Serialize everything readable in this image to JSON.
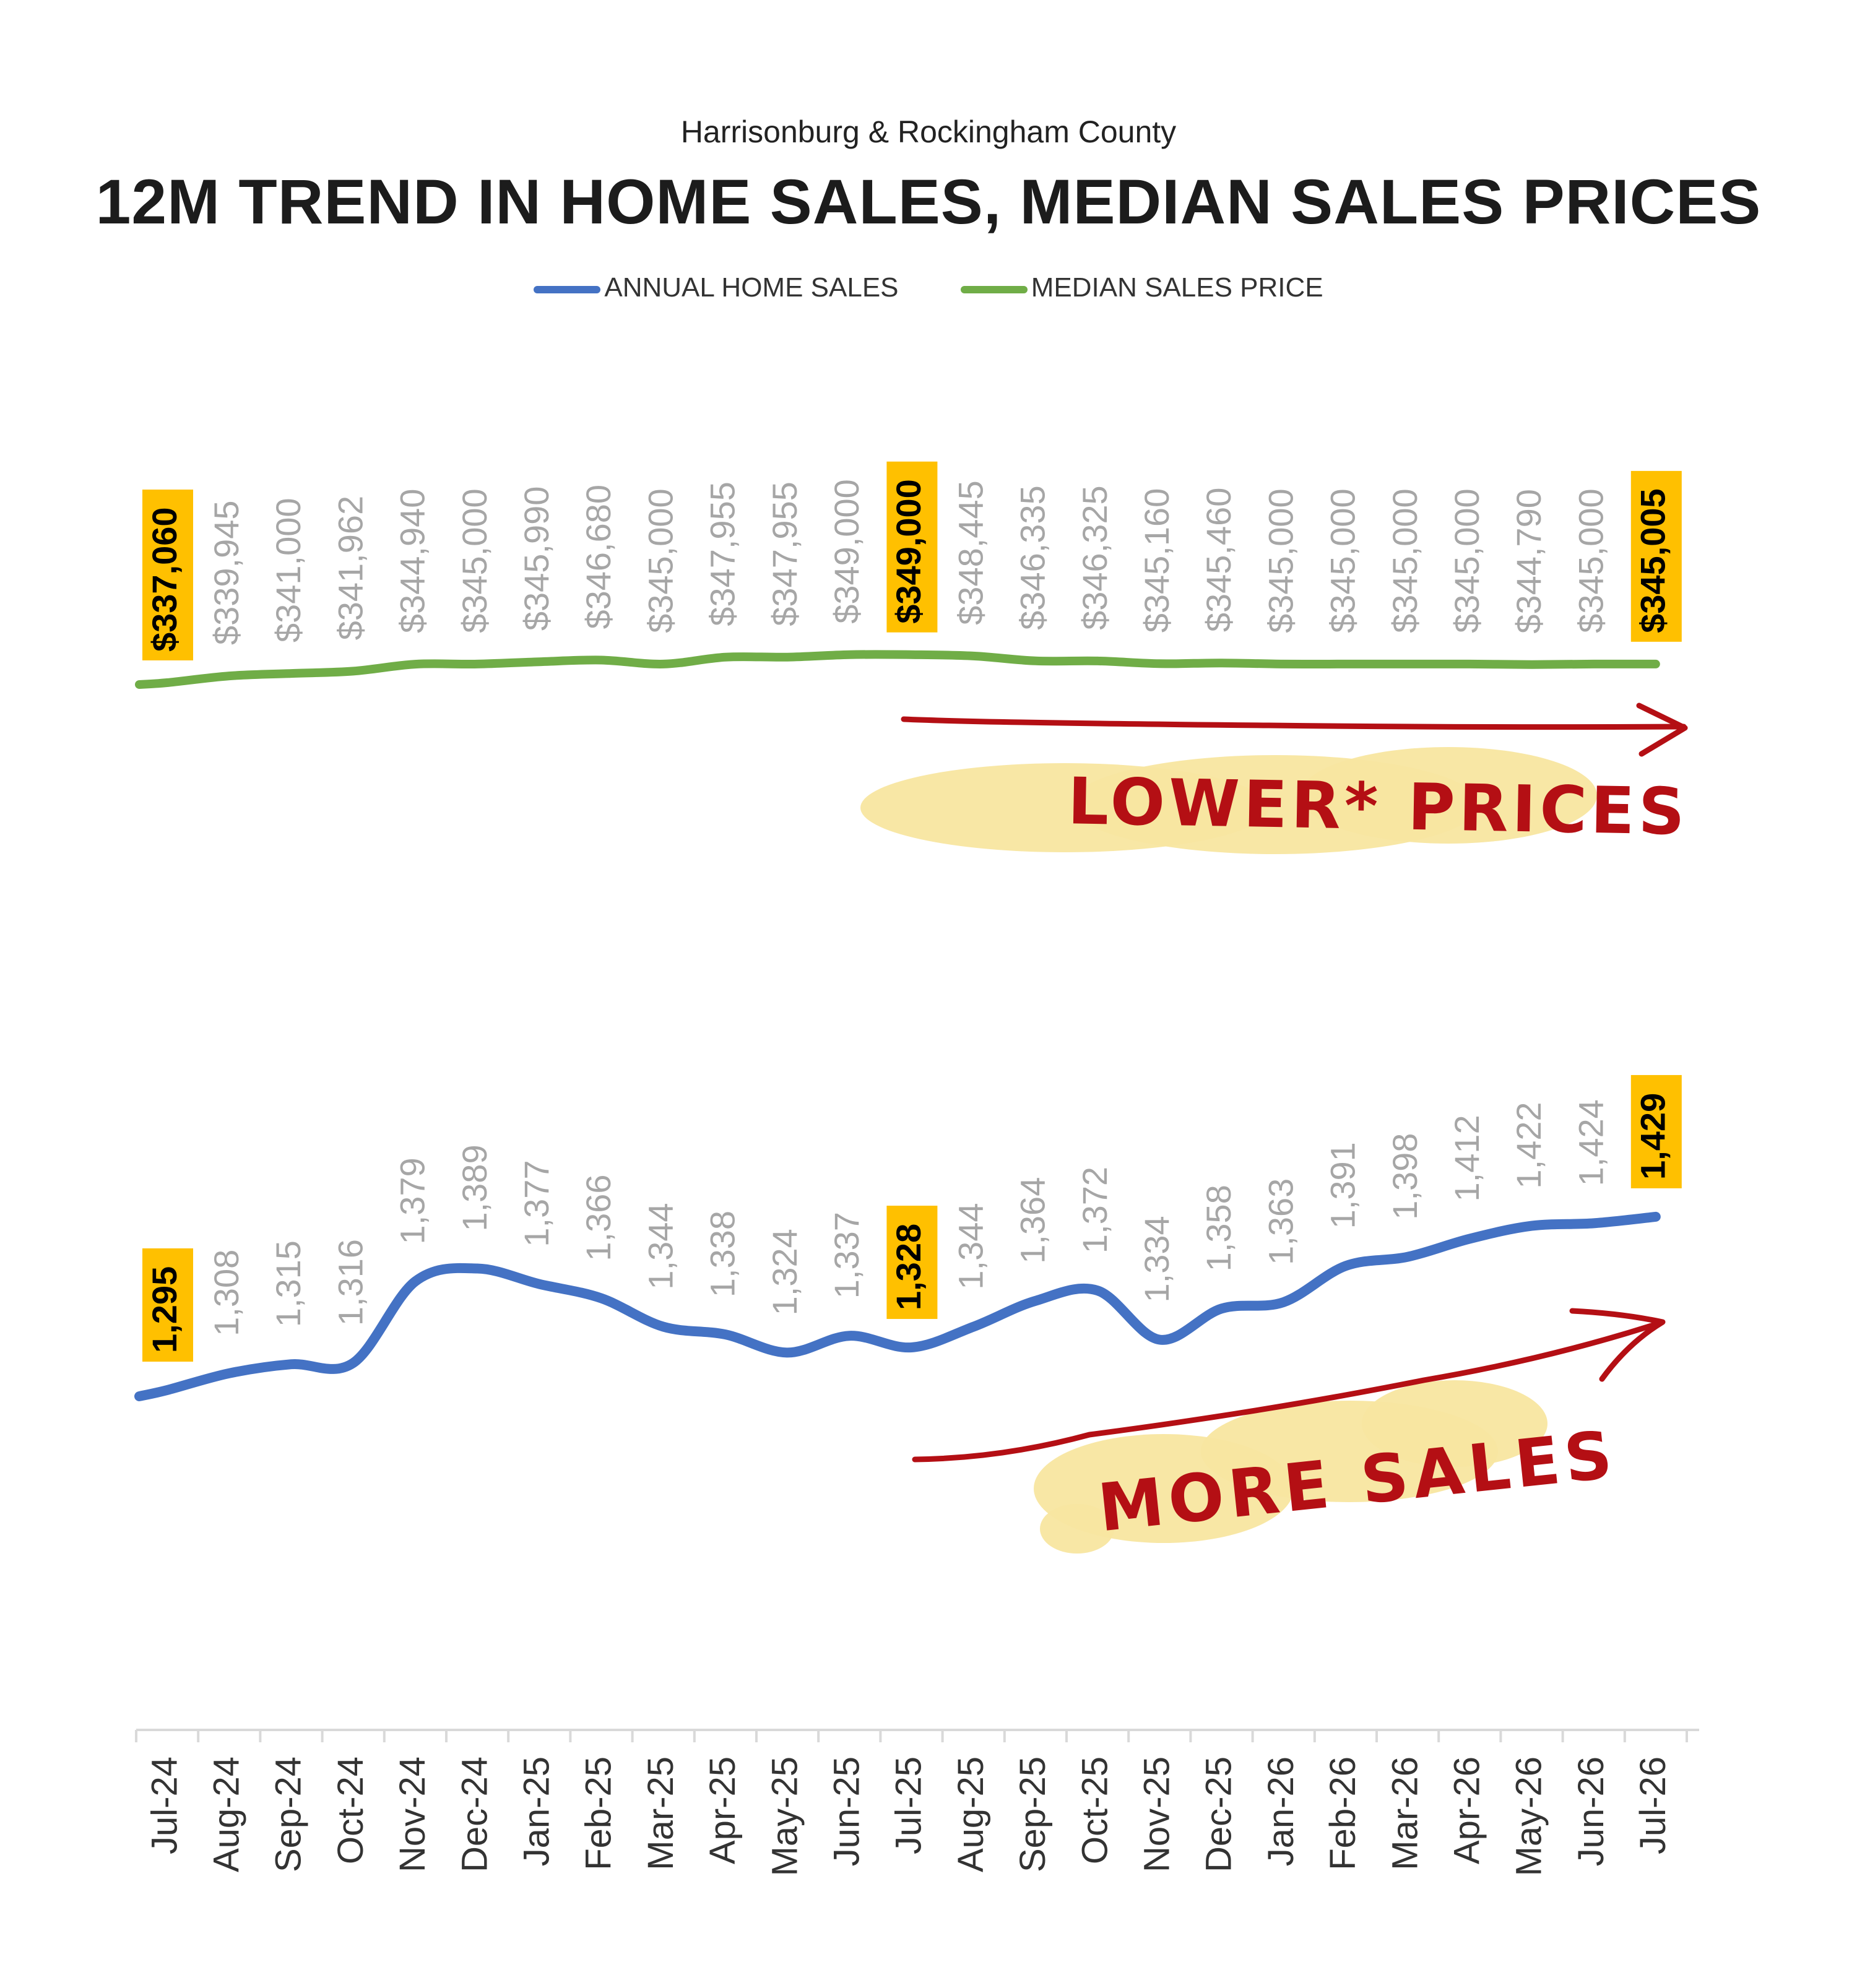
{
  "chart_data": {
    "type": "line",
    "subtitle": "Harrisonburg & Rockingham County",
    "title": "12M TREND IN HOME SALES, MEDIAN SALES PRICES",
    "legend_position": "top-center",
    "grid": false,
    "categories": [
      "Jul-24",
      "Aug-24",
      "Sep-24",
      "Oct-24",
      "Nov-24",
      "Dec-24",
      "Jan-25",
      "Feb-25",
      "Mar-25",
      "Apr-25",
      "May-25",
      "Jun-25",
      "Jul-25",
      "Aug-25",
      "Sep-25",
      "Oct-25",
      "Nov-25",
      "Dec-25",
      "Jan-26",
      "Feb-26",
      "Mar-26",
      "Apr-26",
      "May-26",
      "Jun-26",
      "Jul-26"
    ],
    "series": [
      {
        "name": "ANNUAL HOME SALES",
        "color": "#4472c4",
        "values": [
          1295,
          1308,
          1315,
          1316,
          1379,
          1389,
          1377,
          1366,
          1344,
          1338,
          1324,
          1337,
          1328,
          1344,
          1364,
          1372,
          1334,
          1358,
          1363,
          1391,
          1398,
          1412,
          1422,
          1424,
          1429
        ],
        "labels": [
          "1,295",
          "1,308",
          "1,315",
          "1,316",
          "1,379",
          "1,389",
          "1,377",
          "1,366",
          "1,344",
          "1,338",
          "1,324",
          "1,337",
          "1,328",
          "1,344",
          "1,364",
          "1,372",
          "1,334",
          "1,358",
          "1,363",
          "1,391",
          "1,398",
          "1,412",
          "1,422",
          "1,424",
          "1,429"
        ],
        "highlight_indices": [
          0,
          12,
          24
        ]
      },
      {
        "name": "MEDIAN SALES PRICE",
        "color": "#70ad47",
        "values": [
          337060,
          339945,
          341000,
          341962,
          344940,
          345000,
          345990,
          346680,
          345000,
          347955,
          347955,
          349000,
          349000,
          348445,
          346335,
          346325,
          345160,
          345460,
          345000,
          345000,
          345000,
          345000,
          344790,
          345000,
          345005
        ],
        "labels": [
          "$337,060",
          "$339,945",
          "$341,000",
          "$341,962",
          "$344,940",
          "$345,000",
          "$345,990",
          "$346,680",
          "$345,000",
          "$347,955",
          "$347,955",
          "$349,000",
          "$349,000",
          "$348,445",
          "$346,335",
          "$346,325",
          "$345,160",
          "$345,460",
          "$345,000",
          "$345,000",
          "$345,000",
          "$345,000",
          "$344,790",
          "$345,000",
          "$345,005"
        ],
        "highlight_indices": [
          0,
          12,
          24
        ]
      }
    ],
    "highlight_color": "#ffc000",
    "annotations": [
      {
        "text": "LOWER* PRICES",
        "color": "#b40f14",
        "highlight": "#f8e6a0"
      },
      {
        "text": "MORE SALES",
        "color": "#b40f14",
        "highlight": "#f8e6a0"
      }
    ]
  }
}
